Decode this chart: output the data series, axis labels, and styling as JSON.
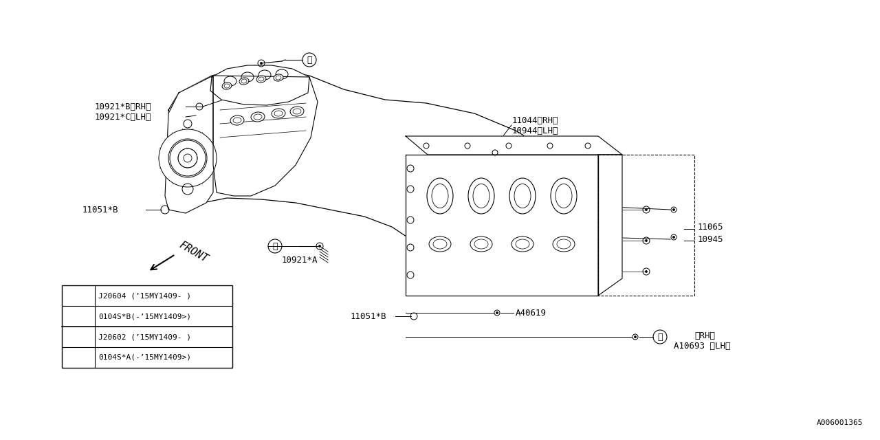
{
  "bg_color": "#ffffff",
  "line_color": "#000000",
  "text_color": "#000000",
  "diagram_id": "A006001365",
  "labels": {
    "10921B_RH": "10921*B〈RH〉",
    "10921C_LH": "10921*C〈LH〉",
    "10921A": "10921*A",
    "11051B_1": "11051*B",
    "11051B_2": "11051*B",
    "11044_RH": "11044〈RH〉",
    "10944_LH": "10944〈LH〉",
    "11065": "11065",
    "10945": "10945",
    "A40619": "A40619",
    "A10693_RH": "〈RH〉",
    "A10693_LH": "A10693 〈LH〉",
    "front": "FRONT"
  },
  "table_row1a": "0104S*A(-’15MY1409>)",
  "table_row1b": "J20602 (’15MY1409- )",
  "table_row2a": "0104S*B(-’15MY1409>)",
  "table_row2b": "J20604 (’15MY1409- )",
  "font_size_label": 9,
  "font_family": "monospace",
  "lw_main": 0.9,
  "lw_thin": 0.7
}
